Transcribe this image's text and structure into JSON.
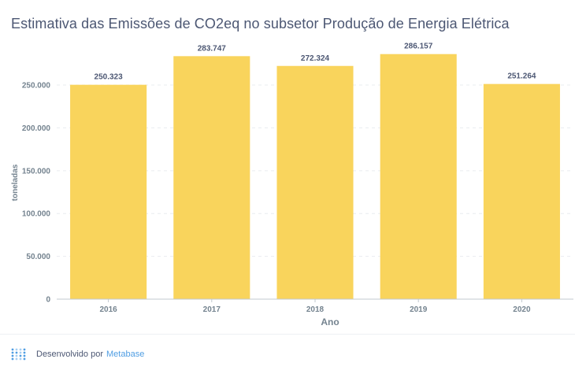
{
  "chart_data": {
    "type": "bar",
    "title": "Estimativa das Emissões de CO2eq no subsetor Produção de Energia Elétrica",
    "xlabel": "Ano",
    "ylabel": "toneladas",
    "categories": [
      "2016",
      "2017",
      "2018",
      "2019",
      "2020"
    ],
    "values": [
      250323,
      283747,
      272324,
      286157,
      251264
    ],
    "value_labels": [
      "250.323",
      "283.747",
      "272.324",
      "286.157",
      "251.264"
    ],
    "ylim": [
      0,
      296000
    ],
    "yticks": [
      0,
      50000,
      100000,
      150000,
      200000,
      250000
    ],
    "ytick_labels": [
      "0",
      "50.000",
      "100.000",
      "150.000",
      "200.000",
      "250.000"
    ],
    "grid": true,
    "legend": "none",
    "bar_color": "#f9d45c"
  },
  "footer": {
    "text": "Desenvolvido por",
    "link": "Metabase",
    "logo_icon": "metabase-logo-icon"
  },
  "colors": {
    "title": "#4c5773",
    "axis_text": "#74838f",
    "link": "#509ee3"
  }
}
